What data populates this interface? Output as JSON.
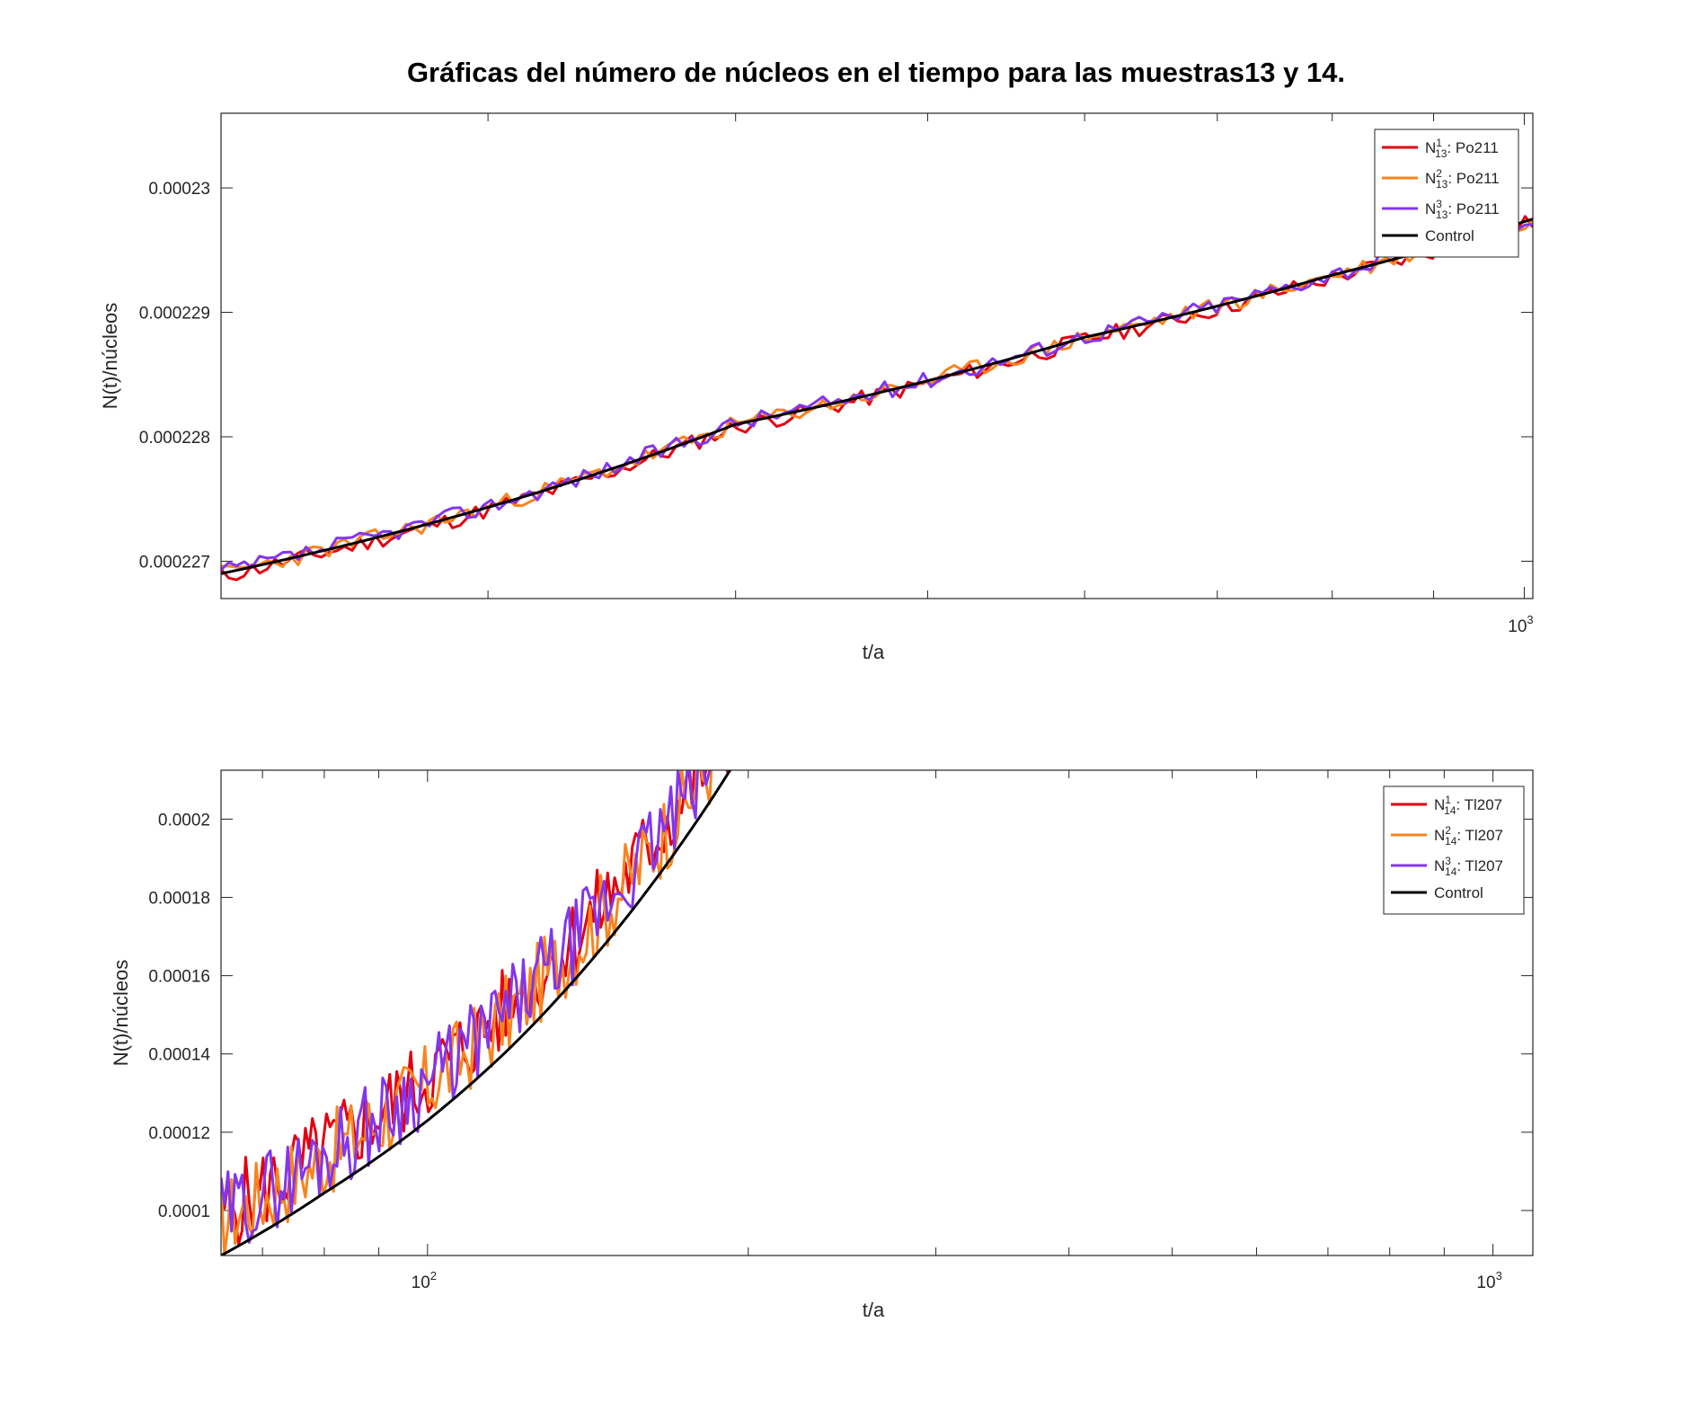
{
  "figure": {
    "title": "Gráficas del número de núcleos en el tiempo para las muestras13 y 14."
  },
  "chart_data": [
    {
      "type": "line",
      "x_scale": "log",
      "xlim": [
        220,
        1010
      ],
      "ylim": [
        0.0002267,
        0.0002306
      ],
      "xlabel": "t/a",
      "ylabel": "N(t)/núcleos",
      "x_tick_labels": [
        {
          "x": 1000,
          "base": "10",
          "exp": "3"
        }
      ],
      "y_ticks": [
        0.000227,
        0.000228,
        0.000229,
        0.00023
      ],
      "y_tick_labels": [
        "0.000227",
        "0.000228",
        "0.000229",
        "0.00023"
      ],
      "legend_position": "top-right",
      "control": {
        "label": "Control",
        "color": "#000000",
        "x": [
          220,
          400,
          600,
          800,
          1010
        ],
        "y": [
          0.0002269,
          0.0002281,
          0.0002288,
          0.0002293,
          0.00022975
        ]
      },
      "noisy_series": [
        {
          "sup": "1",
          "sub": "13",
          "label_suffix": ": Po211",
          "color": "#e3000f",
          "noise": 7e-08,
          "offset": -2e-08,
          "seed": 11
        },
        {
          "sup": "2",
          "sub": "13",
          "label_suffix": ": Po211",
          "color": "#f7851f",
          "noise": 7e-08,
          "offset": 0.0,
          "seed": 23
        },
        {
          "sup": "3",
          "sub": "13",
          "label_suffix": ": Po211",
          "color": "#8335f0",
          "noise": 7e-08,
          "offset": 1e-08,
          "seed": 37
        }
      ],
      "noisy_points": 170
    },
    {
      "type": "line",
      "x_scale": "log",
      "xlim": [
        64,
        1090
      ],
      "ylim": [
        8.85e-05,
        0.0002125
      ],
      "xlabel": "t/a",
      "ylabel": "N(t)/núcleos",
      "x_tick_labels": [
        {
          "x": 100,
          "base": "10",
          "exp": "2"
        },
        {
          "x": 1000,
          "base": "10",
          "exp": "3"
        }
      ],
      "y_ticks": [
        0.0001,
        0.00012,
        0.00014,
        0.00016,
        0.00018,
        0.0002
      ],
      "y_tick_labels": [
        "0.0001",
        "0.00012",
        "0.00014",
        "0.00016",
        "0.00018",
        "0.0002"
      ],
      "legend_position": "top-right",
      "control": {
        "label": "Control",
        "color": "#000000",
        "x": [
          64,
          80,
          100,
          120,
          140,
          160,
          180,
          200
        ],
        "y": [
          8.85e-05,
          0.0001045,
          0.000123,
          0.000142,
          0.0001615,
          0.000181,
          0.0002005,
          0.00022
        ]
      },
      "noisy_series": [
        {
          "sup": "1",
          "sub": "14",
          "label_suffix": ": Tl207",
          "color": "#e3000f",
          "noise": 1.1e-05,
          "offset": 1.1e-05,
          "seed": 5
        },
        {
          "sup": "2",
          "sub": "14",
          "label_suffix": ": Tl207",
          "color": "#f7851f",
          "noise": 1.1e-05,
          "offset": 9e-06,
          "seed": 17
        },
        {
          "sup": "3",
          "sub": "14",
          "label_suffix": ": Tl207",
          "color": "#8335f0",
          "noise": 1.1e-05,
          "offset": 1e-05,
          "seed": 29
        }
      ],
      "noisy_points": 150
    }
  ]
}
